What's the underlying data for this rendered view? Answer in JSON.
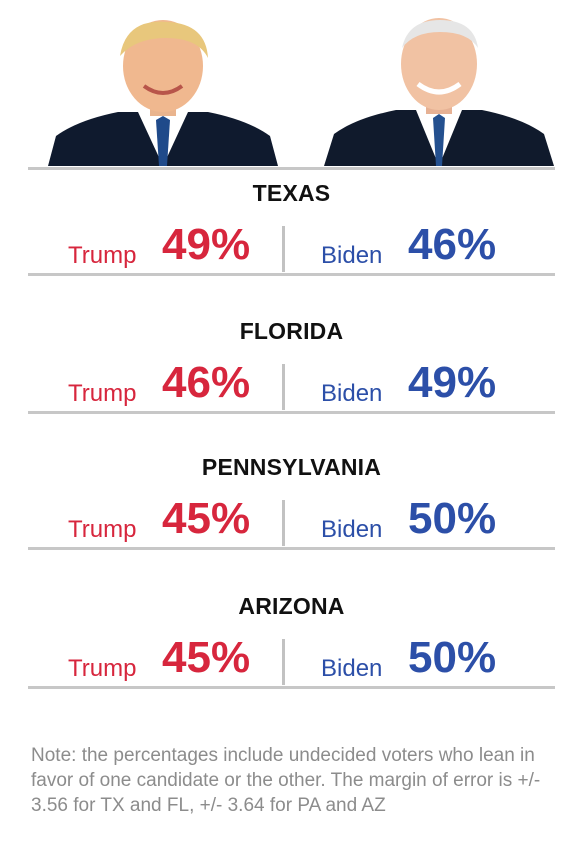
{
  "colors": {
    "trump": "#d7263d",
    "biden": "#2c4fa8",
    "rule": "#c7c7c7",
    "note": "#8c8c8c"
  },
  "portraits": {
    "left_icon": "trump-portrait",
    "right_icon": "biden-portrait"
  },
  "chart_data": {
    "type": "table",
    "columns": [
      "Trump",
      "Biden"
    ],
    "unit": "%",
    "rows": [
      {
        "state": "TEXAS",
        "trump_label": "Trump",
        "biden_label": "Biden",
        "trump": 49,
        "biden": 46,
        "trump_text": "49%",
        "biden_text": "46%"
      },
      {
        "state": "FLORIDA",
        "trump_label": "Trump",
        "biden_label": "Biden",
        "trump": 46,
        "biden": 49,
        "trump_text": "46%",
        "biden_text": "49%"
      },
      {
        "state": "PENNSYLVANIA",
        "trump_label": "Trump",
        "biden_label": "Biden",
        "trump": 45,
        "biden": 50,
        "trump_text": "45%",
        "biden_text": "50%"
      },
      {
        "state": "ARIZONA",
        "trump_label": "Trump",
        "biden_label": "Biden",
        "trump": 45,
        "biden": 50,
        "trump_text": "45%",
        "biden_text": "50%"
      }
    ],
    "note": "Note: the percentages include undecided voters who lean in favor of one candidate or the other. The margin of error is +/- 3.56 for TX and FL, +/- 3.64 for PA and AZ"
  }
}
